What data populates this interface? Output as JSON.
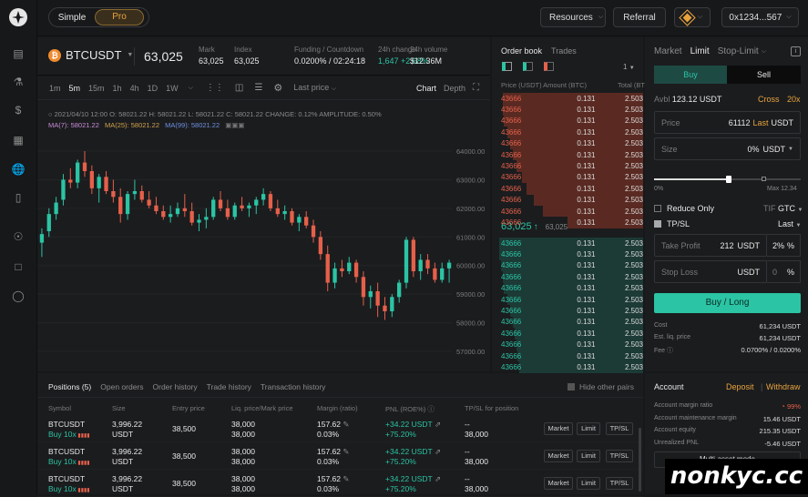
{
  "colors": {
    "green": "#2bc4a4",
    "red": "#e5604a",
    "bg": "#17181a",
    "accent": "#e8a33d"
  },
  "header": {
    "mode_simple": "Simple",
    "mode_pro": "Pro",
    "resources": "Resources",
    "referral": "Referral",
    "wallet": "0x1234...567"
  },
  "sidebar": {
    "icons": [
      "trade-chart-icon",
      "flask-icon",
      "dollar-icon",
      "bank-icon",
      "globe-icon",
      "stats-icon",
      "compass-icon",
      "document-icon",
      "globe-2-icon"
    ]
  },
  "ticker": {
    "symbol": "BTCUSDT",
    "price": "63,025",
    "stats": [
      {
        "label": "Mark",
        "value": "63,025"
      },
      {
        "label": "Index",
        "value": "63,025"
      },
      {
        "label": "Funding / Countdown",
        "value": "0.0200% / 02:24:18"
      },
      {
        "label": "24h change",
        "value": "1,647 +2.68%"
      },
      {
        "label": "24h volume",
        "value": "$12.36M"
      }
    ]
  },
  "chart_toolbar": {
    "intervals": [
      "1m",
      "5m",
      "15m",
      "1h",
      "4h",
      "1D",
      "1W"
    ],
    "active_interval": "5m",
    "price_type": "Last price",
    "chart": "Chart",
    "depth": "Depth"
  },
  "chart_info": {
    "line1": "2021/04/10 12:00  O: 58021.22  H: 58021.22  L: 58021.22  C: 58021.22  CHANGE: 0.12%  AMPLITUDE: 0.50%",
    "ma7": "MA(7): 58021.22",
    "ma25": "MA(25): 58021.22",
    "ma99": "MA(99): 58021.22"
  },
  "chart_data": {
    "type": "candlestick",
    "y_ticks": [
      "64000.00",
      "63000.00",
      "62000.00",
      "61000.00",
      "60000.00",
      "59000.00",
      "58000.00",
      "57000.00"
    ],
    "ylim": [
      56300,
      64700
    ],
    "candles": [
      [
        60800,
        61300,
        60300,
        61100
      ],
      [
        61200,
        62000,
        61000,
        61800
      ],
      [
        61800,
        62400,
        61600,
        62200
      ],
      [
        62300,
        63200,
        62100,
        63000
      ],
      [
        63000,
        63400,
        62700,
        62900
      ],
      [
        62900,
        63700,
        62700,
        63600
      ],
      [
        63600,
        64000,
        63100,
        63300
      ],
      [
        63300,
        63500,
        62500,
        62700
      ],
      [
        62700,
        63200,
        62200,
        63100
      ],
      [
        63100,
        63300,
        62500,
        62600
      ],
      [
        62600,
        63000,
        62200,
        62400
      ],
      [
        62400,
        62700,
        61500,
        61800
      ],
      [
        61800,
        62600,
        61600,
        62500
      ],
      [
        62500,
        63000,
        62300,
        62600
      ],
      [
        62600,
        62800,
        62200,
        62300
      ],
      [
        62300,
        62600,
        62000,
        62100
      ],
      [
        62100,
        62400,
        61800,
        61900
      ],
      [
        61900,
        62100,
        61600,
        61700
      ],
      [
        61700,
        62100,
        61500,
        61800
      ],
      [
        61800,
        62200,
        61700,
        62000
      ],
      [
        62000,
        62500,
        61700,
        61900
      ],
      [
        61900,
        62200,
        61400,
        61500
      ],
      [
        61500,
        61800,
        61200,
        61600
      ],
      [
        61600,
        62000,
        61300,
        61700
      ],
      [
        61700,
        62400,
        61600,
        62300
      ],
      [
        62300,
        62600,
        61900,
        62000
      ],
      [
        62000,
        62300,
        61600,
        61700
      ],
      [
        61700,
        62200,
        61600,
        62100
      ],
      [
        62100,
        62400,
        61900,
        62000
      ],
      [
        62000,
        62200,
        61700,
        62100
      ],
      [
        62100,
        62400,
        61800,
        62300
      ],
      [
        62300,
        62700,
        62100,
        62500
      ],
      [
        62500,
        62600,
        61900,
        62000
      ],
      [
        62000,
        62300,
        61700,
        61800
      ],
      [
        61800,
        62100,
        61600,
        61900
      ],
      [
        61900,
        62000,
        61400,
        61500
      ],
      [
        61500,
        61800,
        61200,
        61700
      ],
      [
        61700,
        61900,
        61300,
        61400
      ],
      [
        61400,
        61600,
        60800,
        61000
      ],
      [
        61000,
        61200,
        60200,
        60400
      ],
      [
        60400,
        60700,
        59100,
        59400
      ],
      [
        59400,
        60100,
        59200,
        59900
      ],
      [
        59900,
        60200,
        59600,
        59800
      ],
      [
        59800,
        60300,
        59700,
        60100
      ],
      [
        60100,
        60200,
        59400,
        59600
      ],
      [
        59600,
        59800,
        58600,
        58900
      ],
      [
        58900,
        59300,
        58500,
        59100
      ],
      [
        59100,
        59400,
        58200,
        58600
      ],
      [
        58600,
        58900,
        58100,
        58400
      ],
      [
        58400,
        59000,
        58200,
        58900
      ],
      [
        58900,
        59500,
        58700,
        59400
      ],
      [
        59400,
        61000,
        59200,
        60900
      ],
      [
        60900,
        61000,
        59600,
        59800
      ],
      [
        59800,
        60400,
        59500,
        60200
      ],
      [
        60200,
        60400,
        59700,
        59900
      ],
      [
        59900,
        60100,
        59400,
        59500
      ],
      [
        59500,
        60100,
        59400,
        59900
      ],
      [
        59900,
        60200,
        59400,
        60100
      ]
    ]
  },
  "orderbook": {
    "tabs": [
      "Order book",
      "Trades"
    ],
    "headers": [
      "Price (USDT)",
      "Amount (BTC)",
      "Total (BTC)"
    ],
    "asks": [
      [
        "43666",
        "0.131",
        "2.503"
      ],
      [
        "43666",
        "0.131",
        "2.503"
      ],
      [
        "43666",
        "0.131",
        "2.503"
      ],
      [
        "43666",
        "0.131",
        "2.503"
      ],
      [
        "43666",
        "0.131",
        "2.503"
      ],
      [
        "43666",
        "0.131",
        "2.503"
      ],
      [
        "43666",
        "0.131",
        "2.503"
      ],
      [
        "43666",
        "0.131",
        "2.503"
      ],
      [
        "43666",
        "0.131",
        "2.503"
      ],
      [
        "43666",
        "0.131",
        "2.503"
      ],
      [
        "43666",
        "0.131",
        "2.503"
      ],
      [
        "43666",
        "0.131",
        "2.503"
      ]
    ],
    "ask_depth": [
      0.93,
      0.93,
      0.92,
      0.9,
      0.88,
      0.86,
      0.84,
      0.8,
      0.77,
      0.72,
      0.66,
      0.5
    ],
    "mid_price": "63,025",
    "mid_sub": "63,025",
    "bids": [
      [
        "43666",
        "0.131",
        "2.503"
      ],
      [
        "43666",
        "0.131",
        "2.503"
      ],
      [
        "43666",
        "0.131",
        "2.503"
      ],
      [
        "43666",
        "0.131",
        "2.503"
      ],
      [
        "43666",
        "0.131",
        "2.503"
      ],
      [
        "43666",
        "0.131",
        "2.503"
      ],
      [
        "43666",
        "0.131",
        "2.503"
      ],
      [
        "43666",
        "0.131",
        "2.503"
      ],
      [
        "43666",
        "0.131",
        "2.503"
      ],
      [
        "43666",
        "0.131",
        "2.503"
      ],
      [
        "43666",
        "0.131",
        "2.503"
      ],
      [
        "43666",
        "0.131",
        "2.503"
      ]
    ],
    "bid_depth": [
      0.95,
      0.95,
      0.94,
      0.93,
      0.92,
      0.9,
      0.88,
      0.86,
      0.85,
      0.84,
      0.83,
      0.82
    ],
    "agg": "1"
  },
  "order_form": {
    "types": [
      "Market",
      "Limit",
      "Stop-Limit"
    ],
    "buy": "Buy",
    "sell": "Sell",
    "avbl_label": "Avbl",
    "avbl": "123.12 USDT",
    "cross": "Cross",
    "lev": "20x",
    "price_label": "Price",
    "price_value": "61112",
    "price_suffix": "Last",
    "price_unit": "USDT",
    "size_label": "Size",
    "size_value": "0%",
    "size_unit": "USDT",
    "slider_min": "0%",
    "slider_max": "Max 12.34",
    "reduce_only": "Reduce Only",
    "tif_label": "TIF",
    "tif": "GTC",
    "tpsl": "TP/SL",
    "last": "Last",
    "tp_label": "Take Profit",
    "tp_value": "212",
    "tp_unit": "USDT",
    "tp_pct": "2%",
    "pct": "%",
    "sl_label": "Stop Loss",
    "sl_unit": "USDT",
    "sl_pct": "0",
    "submit": "Buy / Long",
    "cost_label": "Cost",
    "cost": "61,234 USDT",
    "liq_label": "Est. liq. price",
    "liq": "61,234 USDT",
    "fee_label": "Fee",
    "fee": "0.0700% / 0.0200%"
  },
  "positions": {
    "tabs": [
      "Positions (5)",
      "Open orders",
      "Order history",
      "Trade history",
      "Transaction history"
    ],
    "hide_other": "Hide other pairs",
    "headers": [
      "Symbol",
      "Size",
      "Entry price",
      "Liq. price/Mark price",
      "Margin (ratio)",
      "PNL (ROE%)",
      "TP/SL for position"
    ],
    "rows": [
      {
        "symbol": "BTCUSDT",
        "side": "Buy 10x",
        "size": "3,996.22",
        "size_unit": "USDT",
        "entry": "38,500",
        "liq": "38,000",
        "mark": "38,000",
        "margin": "157.62",
        "ratio": "0.03%",
        "pnl": "+34.22 USDT",
        "roe": "+75.20%",
        "tp": "--",
        "sl": "38,000"
      },
      {
        "symbol": "BTCUSDT",
        "side": "Buy 10x",
        "size": "3,996.22",
        "size_unit": "USDT",
        "entry": "38,500",
        "liq": "38,000",
        "mark": "38,000",
        "margin": "157.62",
        "ratio": "0.03%",
        "pnl": "+34.22 USDT",
        "roe": "+75.20%",
        "tp": "--",
        "sl": "38,000"
      },
      {
        "symbol": "BTCUSDT",
        "side": "Buy 10x",
        "size": "3,996.22",
        "size_unit": "USDT",
        "entry": "38,500",
        "liq": "38,000",
        "mark": "38,000",
        "margin": "157.62",
        "ratio": "0.03%",
        "pnl": "+34.22 USDT",
        "roe": "+75.20%",
        "tp": "--",
        "sl": "38,000"
      }
    ],
    "row_buttons": [
      "Market",
      "Limit",
      "TP/SL"
    ]
  },
  "account": {
    "title": "Account",
    "deposit": "Deposit",
    "withdraw": "Withdraw",
    "rows": [
      {
        "label": "Account margin ratio",
        "value": "99%"
      },
      {
        "label": "Account maintenance margin",
        "value": "15.46 USDT"
      },
      {
        "label": "Account equity",
        "value": "215.35 USDT"
      },
      {
        "label": "Unrealized PNL",
        "value": "-5.46 USDT"
      }
    ],
    "multi_asset": "Multi-asset mode"
  },
  "watermark": "nonkyc.cc"
}
